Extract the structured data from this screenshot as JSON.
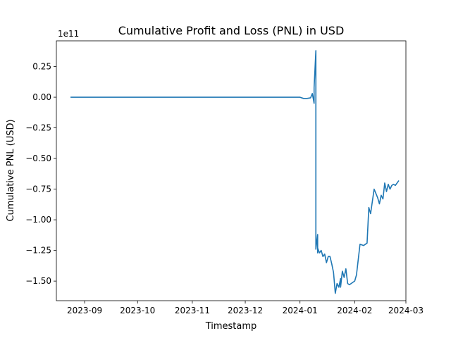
{
  "chart_data": {
    "type": "line",
    "title": "Cumulative Profit and Loss (PNL) in USD",
    "xlabel": "Timestamp",
    "ylabel": "Cumulative PNL (USD)",
    "y_offset_text": "1e11",
    "x_axis_type": "date",
    "xlim": [
      "2023-08-16",
      "2024-03-01"
    ],
    "ylim": [
      -166000000000.0,
      46000000000.0
    ],
    "grid": false,
    "legend": "none",
    "line_color": "#1f77b4",
    "x_ticks": [
      {
        "value": "2023-09-01",
        "label": "2023-09"
      },
      {
        "value": "2023-10-01",
        "label": "2023-10"
      },
      {
        "value": "2023-11-01",
        "label": "2023-11"
      },
      {
        "value": "2023-12-01",
        "label": "2023-12"
      },
      {
        "value": "2024-01-01",
        "label": "2024-01"
      },
      {
        "value": "2024-02-01",
        "label": "2024-02"
      },
      {
        "value": "2024-03-01",
        "label": "2024-03"
      }
    ],
    "y_ticks": [
      {
        "value": 25000000000.0,
        "label": "0.25"
      },
      {
        "value": 0.0,
        "label": "0.00"
      },
      {
        "value": -25000000000.0,
        "label": "−0.25"
      },
      {
        "value": -50000000000.0,
        "label": "−0.50"
      },
      {
        "value": -75000000000.0,
        "label": "−0.75"
      },
      {
        "value": -100000000000.0,
        "label": "−1.00"
      },
      {
        "value": -125000000000.0,
        "label": "−1.25"
      },
      {
        "value": -150000000000.0,
        "label": "−1.50"
      }
    ],
    "series": [
      {
        "x": [
          "2023-08-24",
          "2023-09-15",
          "2023-10-15",
          "2023-11-15",
          "2023-12-15",
          "2024-01-01",
          "2024-01-03",
          "2024-01-05",
          "2024-01-07",
          "2024-01-08",
          "2024-01-09",
          "2024-01-09",
          "2024-01-10",
          "2024-01-10",
          "2024-01-10",
          "2024-01-11",
          "2024-01-11",
          "2024-01-11",
          "2024-01-12",
          "2024-01-13",
          "2024-01-14",
          "2024-01-15",
          "2024-01-16",
          "2024-01-17",
          "2024-01-18",
          "2024-01-19",
          "2024-01-20",
          "2024-01-21",
          "2024-01-22",
          "2024-01-23",
          "2024-01-24",
          "2024-01-24",
          "2024-01-25",
          "2024-01-26",
          "2024-01-27",
          "2024-01-28",
          "2024-01-29",
          "2024-01-30",
          "2024-01-31",
          "2024-02-01",
          "2024-02-02",
          "2024-02-04",
          "2024-02-06",
          "2024-02-08",
          "2024-02-09",
          "2024-02-10",
          "2024-02-12",
          "2024-02-14",
          "2024-02-15",
          "2024-02-16",
          "2024-02-17",
          "2024-02-18",
          "2024-02-19",
          "2024-02-20",
          "2024-02-21",
          "2024-02-22",
          "2024-02-23",
          "2024-02-24",
          "2024-02-26"
        ],
        "y": [
          0,
          0,
          0,
          0,
          0,
          0,
          -1000000000.0,
          -1000000000.0,
          -500000000.0,
          3000000000.0,
          -5000000000.0,
          8000000000.0,
          38000000000.0,
          -30000000000.0,
          -124000000000.0,
          -112000000000.0,
          -127000000000.0,
          -123000000000.0,
          -127000000000.0,
          -125000000000.0,
          -130000000000.0,
          -128000000000.0,
          -135000000000.0,
          -130000000000.0,
          -130000000000.0,
          -136000000000.0,
          -143000000000.0,
          -160000000000.0,
          -152000000000.0,
          -155000000000.0,
          -148000000000.0,
          -155000000000.0,
          -142000000000.0,
          -147000000000.0,
          -140000000000.0,
          -152000000000.0,
          -153000000000.0,
          -152000000000.0,
          -151000000000.0,
          -150000000000.0,
          -145000000000.0,
          -120000000000.0,
          -121000000000.0,
          -119000000000.0,
          -90000000000.0,
          -95000000000.0,
          -75000000000.0,
          -82000000000.0,
          -87000000000.0,
          -80000000000.0,
          -83000000000.0,
          -70000000000.0,
          -77000000000.0,
          -71000000000.0,
          -75000000000.0,
          -72000000000.0,
          -71000000000.0,
          -72000000000.0,
          -68000000000.0
        ]
      }
    ]
  }
}
